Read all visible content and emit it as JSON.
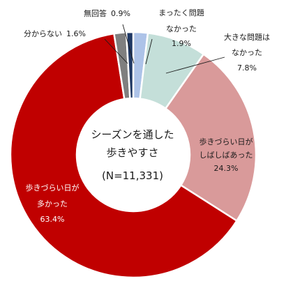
{
  "chart_data": {
    "type": "pie",
    "subtype": "donut",
    "center_text": [
      "シーズンを通した",
      "歩きやすさ",
      "(N=11,331)"
    ],
    "slices": [
      {
        "label": [
          "まったく問題",
          "なかった"
        ],
        "value": 1.9,
        "value_text": "1.9%",
        "color": "#adc3e8"
      },
      {
        "label": [
          "大きな問題は",
          "なかった"
        ],
        "value": 7.8,
        "value_text": "7.8%",
        "color": "#c4dfd9"
      },
      {
        "label": [
          "歩きづらい日が",
          "しばしばあった"
        ],
        "value": 24.3,
        "value_text": "24.3%",
        "color": "#d99a9a"
      },
      {
        "label": [
          "歩きづらい日が",
          "多かった"
        ],
        "value": 63.4,
        "value_text": "63.4%",
        "color": "#c00000"
      },
      {
        "label": [
          "分からない"
        ],
        "value": 1.6,
        "value_text": "1.6%",
        "color": "#7f7f7f"
      },
      {
        "label": [
          "無回答"
        ],
        "value": 0.9,
        "value_text": "0.9%",
        "color": "#1f3864"
      }
    ]
  }
}
